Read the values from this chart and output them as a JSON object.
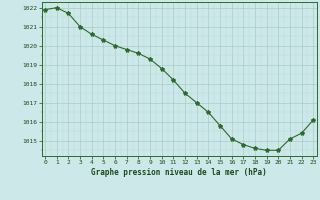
{
  "x": [
    0,
    1,
    2,
    3,
    4,
    5,
    6,
    7,
    8,
    9,
    10,
    11,
    12,
    13,
    14,
    15,
    16,
    17,
    18,
    19,
    20,
    21,
    22,
    23
  ],
  "y": [
    1021.9,
    1022.0,
    1021.7,
    1021.0,
    1020.6,
    1020.3,
    1020.0,
    1019.8,
    1019.6,
    1019.3,
    1018.8,
    1018.2,
    1017.5,
    1017.0,
    1016.5,
    1015.8,
    1015.1,
    1014.8,
    1014.6,
    1014.5,
    1014.5,
    1015.1,
    1015.4,
    1016.1
  ],
  "line_color": "#2d6b2d",
  "marker": "*",
  "marker_size": 3,
  "bg_color": "#cce8e8",
  "grid_major_color": "#aacaca",
  "grid_minor_color": "#bbdada",
  "xlabel": "Graphe pression niveau de la mer (hPa)",
  "xlabel_color": "#1a4a1a",
  "tick_color": "#1a4a1a",
  "ylim_min": 1014.2,
  "ylim_max": 1022.3,
  "border_color": "#2d6b2d"
}
